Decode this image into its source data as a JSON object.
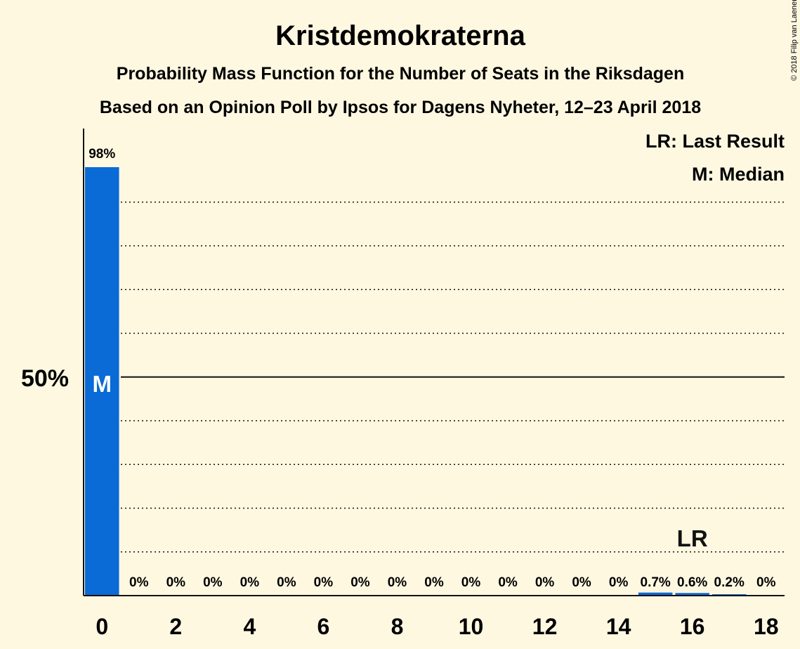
{
  "chart_data": {
    "type": "bar",
    "title": "Kristdemokraterna",
    "subtitle": "Probability Mass Function for the Number of Seats in the Riksdagen",
    "subtitle2": "Based on an Opinion Poll by Ipsos for Dagens Nyheter, 12–23 April 2018",
    "copyright": "© 2018 Filip van Laenen",
    "legend": [
      "LR: Last Result",
      "M: Median"
    ],
    "y_tick_label": "50%",
    "y_tick_value": 50,
    "ylim": [
      0,
      100
    ],
    "grid_step": 10,
    "x": [
      0,
      1,
      2,
      3,
      4,
      5,
      6,
      7,
      8,
      9,
      10,
      11,
      12,
      13,
      14,
      15,
      16,
      17,
      18
    ],
    "x_tick_labels": [
      "0",
      "2",
      "4",
      "6",
      "8",
      "10",
      "12",
      "14",
      "16",
      "18"
    ],
    "values": [
      98,
      0,
      0,
      0,
      0,
      0,
      0,
      0,
      0,
      0,
      0,
      0,
      0,
      0,
      0,
      0.7,
      0.6,
      0.2,
      0
    ],
    "labels": [
      "98%",
      "0%",
      "0%",
      "0%",
      "0%",
      "0%",
      "0%",
      "0%",
      "0%",
      "0%",
      "0%",
      "0%",
      "0%",
      "0%",
      "0%",
      "0.7%",
      "0.6%",
      "0.2%",
      "0%"
    ],
    "median": {
      "x": 0,
      "label": "M"
    },
    "last_result": {
      "x": 16,
      "label": "LR"
    },
    "bar_color": "#0a6ad6",
    "background": "#fff8e1"
  }
}
